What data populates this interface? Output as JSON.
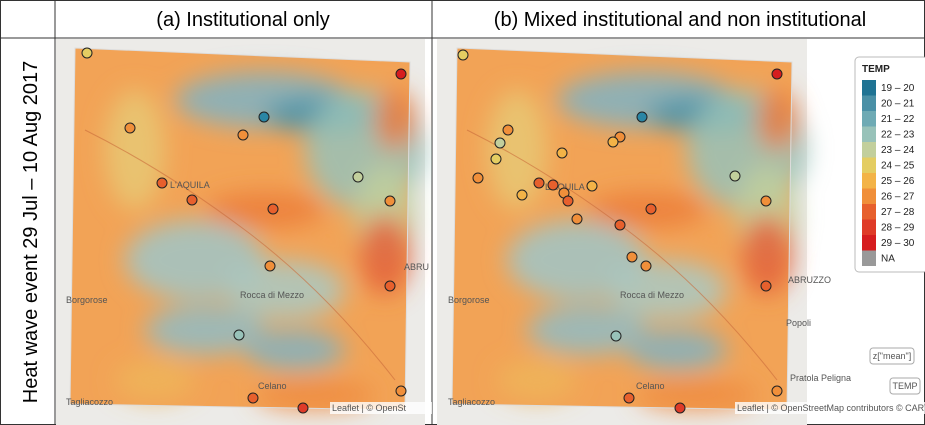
{
  "columns": [
    "(a) Institutional only",
    "(b) Mixed institutional and non institutional"
  ],
  "row_label": "Heat wave event 29 Jul – 10 Aug 2017",
  "panels": [
    {
      "places": [
        "L'AQUILA",
        "Rocca di Mezzo",
        "Borgorose",
        "Celano",
        "Tagliacozzo",
        "ABRU"
      ],
      "attribution": "Leaflet | © OpenSt"
    },
    {
      "places": [
        "L'AQUILA",
        "Rocca di Mezzo",
        "Borgorose",
        "Celano",
        "Tagliacozzo",
        "ABRUZZO",
        "Popoli",
        "Pratola Peligna"
      ],
      "attribution": "Leaflet | © OpenStreetMap contributors © CARTO"
    }
  ],
  "legend": {
    "title": "TEMP",
    "items": [
      {
        "label": "19 – 20",
        "color": "#1f7393"
      },
      {
        "label": "20 – 21",
        "color": "#4a90a6"
      },
      {
        "label": "21 – 22",
        "color": "#6eaab4"
      },
      {
        "label": "22 – 23",
        "color": "#98c2b9"
      },
      {
        "label": "23 – 24",
        "color": "#c2cf9c"
      },
      {
        "label": "24 – 25",
        "color": "#e4cd62"
      },
      {
        "label": "25 – 26",
        "color": "#f3b347"
      },
      {
        "label": "26 – 27",
        "color": "#f08f3a"
      },
      {
        "label": "27 – 28",
        "color": "#e7602d"
      },
      {
        "label": "28 – 29",
        "color": "#df3b28"
      },
      {
        "label": "29 – 30",
        "color": "#d61d1f"
      },
      {
        "label": "NA",
        "color": "#999999"
      }
    ]
  },
  "buttons": [
    "z[\"mean\"]",
    "TEMP"
  ]
}
